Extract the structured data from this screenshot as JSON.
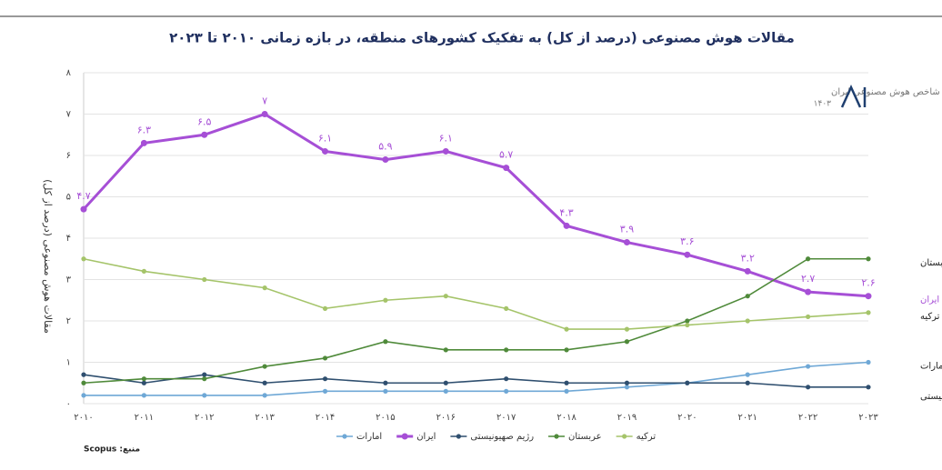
{
  "chart_data": {
    "type": "line",
    "title": "مقالات هوش مصنوعی (درصد از کل) به تفکیک کشورهای منطقه، در بازه زمانی ۲۰۱۰ تا ۲۰۲۳",
    "y_label": "مقالات هوش مصنوعی (درصد از کل)",
    "watermark": "شاخص هوش مصنوعی ایران",
    "watermark_year": "۱۴۰۳",
    "source": "منبع: Scopus",
    "categories": [
      "۲۰۱۰",
      "۲۰۱۱",
      "۲۰۱۲",
      "۲۰۱۳",
      "۲۰۱۴",
      "۲۰۱۵",
      "۲۰۱۶",
      "۲۰۱۷",
      "۲۰۱۸",
      "۲۰۱۹",
      "۲۰۲۰",
      "۲۰۲۱",
      "۲۰۲۲",
      "۲۰۲۳"
    ],
    "ylim": [
      0,
      8
    ],
    "yticks": [
      {
        "value": 0,
        "label": "۰"
      },
      {
        "value": 1,
        "label": "۱"
      },
      {
        "value": 2,
        "label": "۲"
      },
      {
        "value": 3,
        "label": "۳"
      },
      {
        "value": 4,
        "label": "۴"
      },
      {
        "value": 5,
        "label": "۵"
      },
      {
        "value": 6,
        "label": "۶"
      },
      {
        "value": 7,
        "label": "۷"
      },
      {
        "value": 8,
        "label": "۸"
      }
    ],
    "grid": true,
    "series": [
      {
        "name": "امارات",
        "color": "#6fa8d6",
        "values": [
          0.2,
          0.2,
          0.2,
          0.2,
          0.3,
          0.3,
          0.3,
          0.3,
          0.3,
          0.4,
          0.5,
          0.7,
          0.9,
          1.0
        ]
      },
      {
        "name": "ایران",
        "color": "#a64fd6",
        "values": [
          4.7,
          6.3,
          6.5,
          7,
          6.1,
          5.9,
          6.1,
          5.7,
          4.3,
          3.9,
          3.6,
          3.2,
          2.7,
          2.6
        ],
        "value_labels": [
          "۴.۷",
          "۶.۳",
          "۶.۵",
          "۷",
          "۶.۱",
          "۵.۹",
          "۶.۱",
          "۵.۷",
          "۴.۳",
          "۳.۹",
          "۳.۶",
          "۳.۲",
          "۲.۷",
          "۲.۶"
        ]
      },
      {
        "name": "رژیم صهیونیستی",
        "color": "#2f4f6f",
        "values": [
          0.7,
          0.5,
          0.7,
          0.5,
          0.6,
          0.5,
          0.5,
          0.6,
          0.5,
          0.5,
          0.5,
          0.5,
          0.4,
          0.4
        ]
      },
      {
        "name": "عربستان",
        "color": "#4f8a3a",
        "values": [
          0.5,
          0.6,
          0.6,
          0.9,
          1.1,
          1.5,
          1.3,
          1.3,
          1.3,
          1.5,
          2.0,
          2.6,
          3.5,
          3.5
        ]
      },
      {
        "name": "ترکیه",
        "color": "#a5c46a",
        "values": [
          3.5,
          3.2,
          3.0,
          2.8,
          2.3,
          2.5,
          2.6,
          2.3,
          1.8,
          1.8,
          1.9,
          2.0,
          2.1,
          2.2
        ]
      }
    ]
  }
}
